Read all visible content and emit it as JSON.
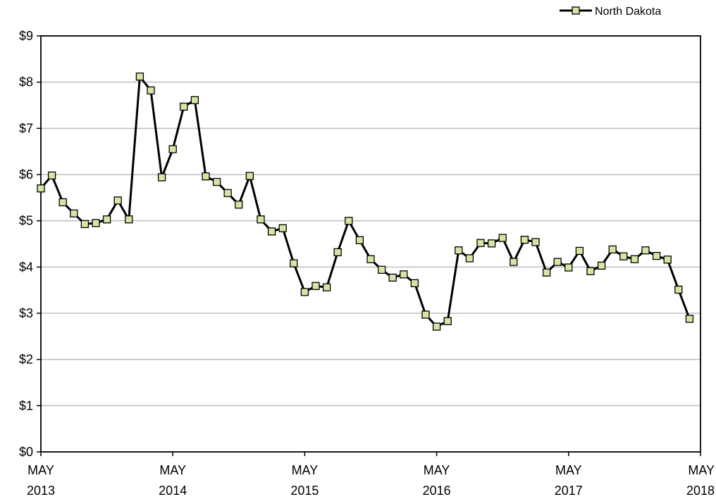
{
  "chart_data": {
    "type": "line",
    "title": "",
    "xlabel": "",
    "ylabel": "",
    "x_tick_labels": [
      {
        "month": "MAY",
        "year": "2013"
      },
      {
        "month": "MAY",
        "year": "2014"
      },
      {
        "month": "MAY",
        "year": "2015"
      },
      {
        "month": "MAY",
        "year": "2016"
      },
      {
        "month": "MAY",
        "year": "2017"
      },
      {
        "month": "MAY",
        "year": "2018"
      }
    ],
    "y_tick_labels": [
      "$0",
      "$1",
      "$2",
      "$3",
      "$4",
      "$5",
      "$6",
      "$7",
      "$8",
      "$9"
    ],
    "ylim": [
      0,
      9
    ],
    "xlim": [
      "2013-05",
      "2018-05"
    ],
    "grid": "horizontal",
    "legend_position": "top-right",
    "series": [
      {
        "name": "North Dakota",
        "color": "#000000",
        "marker_fill": "#d4e6a5",
        "marker": "square",
        "x": [
          "2013-05",
          "2013-06",
          "2013-07",
          "2013-08",
          "2013-09",
          "2013-10",
          "2013-11",
          "2013-12",
          "2014-01",
          "2014-02",
          "2014-03",
          "2014-04",
          "2014-05",
          "2014-06",
          "2014-07",
          "2014-08",
          "2014-09",
          "2014-10",
          "2014-11",
          "2014-12",
          "2015-01",
          "2015-02",
          "2015-03",
          "2015-04",
          "2015-05",
          "2015-06",
          "2015-07",
          "2015-08",
          "2015-09",
          "2015-10",
          "2015-11",
          "2015-12",
          "2016-01",
          "2016-02",
          "2016-03",
          "2016-04",
          "2016-05",
          "2016-06",
          "2016-07",
          "2016-08",
          "2016-09",
          "2016-10",
          "2016-11",
          "2016-12",
          "2017-01",
          "2017-02",
          "2017-03",
          "2017-04",
          "2017-05",
          "2017-06",
          "2017-07",
          "2017-08",
          "2017-09",
          "2017-10",
          "2017-11",
          "2017-12",
          "2018-01",
          "2018-02",
          "2018-03",
          "2018-04"
        ],
        "values": [
          5.7,
          5.98,
          5.4,
          5.16,
          4.93,
          4.95,
          5.03,
          5.44,
          5.03,
          8.12,
          7.82,
          5.94,
          6.55,
          7.47,
          7.61,
          5.96,
          5.84,
          5.6,
          5.35,
          5.97,
          5.03,
          4.77,
          4.84,
          4.08,
          3.46,
          3.59,
          3.56,
          4.32,
          5.0,
          4.58,
          4.17,
          3.94,
          3.77,
          3.84,
          3.65,
          2.97,
          2.71,
          2.83,
          4.36,
          4.19,
          4.52,
          4.51,
          4.63,
          4.11,
          4.59,
          4.54,
          3.88,
          4.11,
          3.99,
          4.35,
          3.91,
          4.03,
          4.38,
          4.23,
          4.17,
          4.36,
          4.24,
          4.16,
          3.51,
          2.88
        ]
      }
    ]
  }
}
